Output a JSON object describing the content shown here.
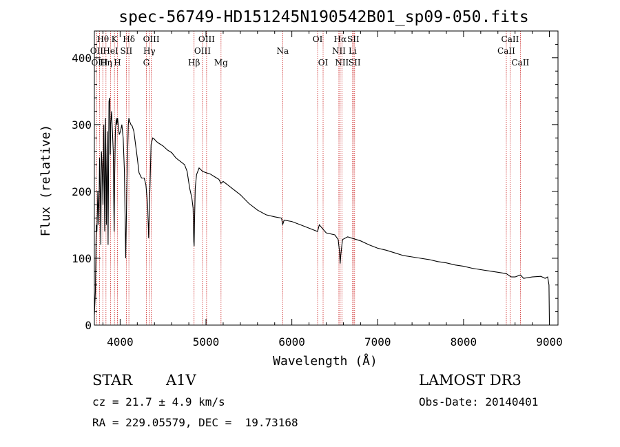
{
  "chart_data": {
    "type": "line",
    "title": "spec-56749-HD151245N190542B01_sp09-050.fits",
    "xlabel": "Wavelength (Å)",
    "ylabel": "Flux (relative)",
    "xlim": [
      3700,
      9100
    ],
    "ylim": [
      0,
      440
    ],
    "x_ticks": [
      4000,
      5000,
      6000,
      7000,
      8000,
      9000
    ],
    "y_ticks": [
      0,
      100,
      200,
      300,
      400
    ],
    "x_tick_labels": [
      "4000",
      "5000",
      "6000",
      "7000",
      "8000",
      "9000"
    ],
    "y_tick_labels": [
      "0",
      "100",
      "200",
      "300",
      "400"
    ],
    "series": [
      {
        "name": "spectrum",
        "x": [
          3700,
          3712,
          3722,
          3730,
          3740,
          3752,
          3760,
          3770,
          3775,
          3782,
          3790,
          3800,
          3810,
          3820,
          3830,
          3840,
          3850,
          3860,
          3870,
          3880,
          3885,
          3890,
          3900,
          3910,
          3920,
          3930,
          3935,
          3945,
          3955,
          3962,
          3970,
          3978,
          3990,
          4005,
          4020,
          4035,
          4050,
          4065,
          4080,
          4095,
          4102,
          4110,
          4125,
          4140,
          4160,
          4180,
          4200,
          4220,
          4250,
          4280,
          4300,
          4320,
          4332,
          4340,
          4348,
          4360,
          4380,
          4400,
          4420,
          4450,
          4500,
          4550,
          4600,
          4650,
          4700,
          4750,
          4780,
          4810,
          4835,
          4850,
          4858,
          4862,
          4866,
          4875,
          4890,
          4920,
          4960,
          5000,
          5050,
          5100,
          5150,
          5175,
          5200,
          5250,
          5300,
          5400,
          5500,
          5600,
          5700,
          5800,
          5880,
          5893,
          5910,
          6000,
          6100,
          6200,
          6300,
          6320,
          6400,
          6500,
          6540,
          6555,
          6563,
          6570,
          6590,
          6650,
          6700,
          6800,
          6900,
          7000,
          7100,
          7200,
          7300,
          7400,
          7500,
          7600,
          7700,
          7800,
          7900,
          8000,
          8100,
          8200,
          8300,
          8400,
          8498,
          8520,
          8542,
          8560,
          8600,
          8662,
          8700,
          8800,
          8900,
          8950,
          8980,
          8995,
          9000
        ],
        "values": [
          15,
          50,
          150,
          140,
          200,
          150,
          250,
          190,
          120,
          260,
          240,
          180,
          300,
          140,
          310,
          150,
          290,
          120,
          335,
          340,
          255,
          300,
          320,
          290,
          260,
          140,
          210,
          290,
          310,
          300,
          310,
          300,
          285,
          290,
          300,
          280,
          230,
          100,
          220,
          300,
          310,
          305,
          300,
          298,
          290,
          270,
          250,
          228,
          220,
          220,
          210,
          180,
          130,
          175,
          210,
          270,
          280,
          278,
          275,
          272,
          268,
          262,
          258,
          250,
          245,
          240,
          230,
          205,
          190,
          175,
          125,
          118,
          150,
          205,
          225,
          235,
          230,
          228,
          226,
          222,
          218,
          212,
          215,
          210,
          205,
          195,
          182,
          172,
          165,
          162,
          160,
          150,
          157,
          155,
          150,
          145,
          140,
          150,
          138,
          135,
          128,
          110,
          92,
          105,
          128,
          132,
          130,
          126,
          120,
          115,
          112,
          108,
          104,
          102,
          100,
          98,
          95,
          93,
          90,
          88,
          85,
          83,
          81,
          79,
          77,
          75,
          73,
          72,
          72,
          75,
          70,
          72,
          73,
          70,
          72,
          60,
          5
        ]
      }
    ],
    "lines": [
      {
        "name": "Hθ",
        "x": 3798,
        "row": 0
      },
      {
        "name": "OII",
        "x": 3727,
        "row": 1
      },
      {
        "name": "OIII",
        "x": 3760,
        "row": 2
      },
      {
        "name": "Hη",
        "x": 3835,
        "row": 2
      },
      {
        "name": "HeI",
        "x": 3889,
        "row": 1
      },
      {
        "name": "K",
        "x": 3934,
        "row": 0
      },
      {
        "name": "H",
        "x": 3969,
        "row": 2
      },
      {
        "name": "SII",
        "x": 4072,
        "row": 1
      },
      {
        "name": "Hδ",
        "x": 4102,
        "row": 0
      },
      {
        "name": "OIII",
        "x": 4363,
        "row": 0
      },
      {
        "name": "Hγ",
        "x": 4340,
        "row": 1
      },
      {
        "name": "G",
        "x": 4305,
        "row": 2
      },
      {
        "name": "Hβ",
        "x": 4861,
        "row": 2
      },
      {
        "name": "OIII",
        "x": 5007,
        "row": 0
      },
      {
        "name": "OIII",
        "x": 4959,
        "row": 1
      },
      {
        "name": "Mg",
        "x": 5175,
        "row": 2
      },
      {
        "name": "Na",
        "x": 5893,
        "row": 1
      },
      {
        "name": "OI",
        "x": 6300,
        "row": 0
      },
      {
        "name": "OI",
        "x": 6364,
        "row": 2
      },
      {
        "name": "Hα",
        "x": 6563,
        "row": 0
      },
      {
        "name": "NII",
        "x": 6548,
        "row": 1
      },
      {
        "name": "NII",
        "x": 6583,
        "row": 2
      },
      {
        "name": "SII",
        "x": 6716,
        "row": 0
      },
      {
        "name": "Li",
        "x": 6708,
        "row": 1
      },
      {
        "name": "SII",
        "x": 6731,
        "row": 2
      },
      {
        "name": "CaII",
        "x": 8542,
        "row": 0
      },
      {
        "name": "CaII",
        "x": 8498,
        "row": 1
      },
      {
        "name": "CaII",
        "x": 8662,
        "row": 2
      }
    ]
  },
  "info": {
    "class": "STAR",
    "subclass": "A1V",
    "survey": "LAMOST DR3",
    "cz": "cz = 21.7 ± 4.9 km/s",
    "obs_date": "Obs-Date: 20140401",
    "radec": "RA = 229.05579, DEC =  19.73168"
  },
  "colors": {
    "spectrum": "#000000",
    "line_marker": "#cc2222",
    "axes": "#000000"
  }
}
